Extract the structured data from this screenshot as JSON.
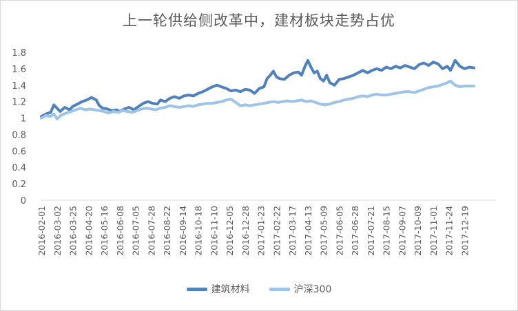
{
  "chart_data": {
    "type": "line",
    "title": "上一轮供给侧改革中，建材板块走势占优",
    "xlabel": "",
    "ylabel": "",
    "ylim": [
      0,
      1.8
    ],
    "yticks": [
      "0",
      "0.2",
      "0.4",
      "0.6",
      "0.8",
      "1",
      "1.2",
      "1.4",
      "1.6",
      "1.8"
    ],
    "grid": false,
    "legend_position": "bottom",
    "x_tick_labels": [
      "2016-02-01",
      "2016-03-02",
      "2016-03-25",
      "2016-04-20",
      "2016-05-16",
      "2016-06-08",
      "2016-07-05",
      "2016-07-28",
      "2016-08-22",
      "2016-09-14",
      "2016-10-18",
      "2016-11-10",
      "2016-12-05",
      "2016-12-28",
      "2017-01-23",
      "2017-02-22",
      "2017-03-17",
      "2017-04-13",
      "2017-05-09",
      "2017-06-05",
      "2017-06-28",
      "2017-07-21",
      "2017-08-15",
      "2017-09-07",
      "2017-10-09",
      "2017-11-01",
      "2017-11-24",
      "2017-12-19"
    ],
    "x_end": 29.0,
    "series": [
      {
        "name": "建筑材料",
        "color": "#4f81bd",
        "points": [
          [
            0,
            1.02
          ],
          [
            0.3,
            1.05
          ],
          [
            0.6,
            1.07
          ],
          [
            0.8,
            1.16
          ],
          [
            1.0,
            1.12
          ],
          [
            1.2,
            1.08
          ],
          [
            1.5,
            1.13
          ],
          [
            1.8,
            1.1
          ],
          [
            2.0,
            1.14
          ],
          [
            2.3,
            1.17
          ],
          [
            2.6,
            1.2
          ],
          [
            2.9,
            1.22
          ],
          [
            3.2,
            1.25
          ],
          [
            3.5,
            1.22
          ],
          [
            3.7,
            1.15
          ],
          [
            3.9,
            1.12
          ],
          [
            4.2,
            1.11
          ],
          [
            4.5,
            1.09
          ],
          [
            4.8,
            1.1
          ],
          [
            5.0,
            1.08
          ],
          [
            5.3,
            1.11
          ],
          [
            5.6,
            1.13
          ],
          [
            5.9,
            1.1
          ],
          [
            6.2,
            1.14
          ],
          [
            6.5,
            1.18
          ],
          [
            6.8,
            1.2
          ],
          [
            7.1,
            1.18
          ],
          [
            7.4,
            1.17
          ],
          [
            7.6,
            1.22
          ],
          [
            7.9,
            1.2
          ],
          [
            8.2,
            1.24
          ],
          [
            8.5,
            1.26
          ],
          [
            8.8,
            1.24
          ],
          [
            9.1,
            1.27
          ],
          [
            9.4,
            1.28
          ],
          [
            9.7,
            1.27
          ],
          [
            10.0,
            1.3
          ],
          [
            10.3,
            1.32
          ],
          [
            10.6,
            1.35
          ],
          [
            10.9,
            1.38
          ],
          [
            11.2,
            1.4
          ],
          [
            11.5,
            1.38
          ],
          [
            11.8,
            1.36
          ],
          [
            12.1,
            1.33
          ],
          [
            12.4,
            1.34
          ],
          [
            12.7,
            1.32
          ],
          [
            13.0,
            1.35
          ],
          [
            13.3,
            1.34
          ],
          [
            13.6,
            1.3
          ],
          [
            13.9,
            1.36
          ],
          [
            14.2,
            1.38
          ],
          [
            14.4,
            1.48
          ],
          [
            14.6,
            1.52
          ],
          [
            14.8,
            1.57
          ],
          [
            15.0,
            1.5
          ],
          [
            15.2,
            1.48
          ],
          [
            15.5,
            1.47
          ],
          [
            15.8,
            1.52
          ],
          [
            16.1,
            1.55
          ],
          [
            16.4,
            1.56
          ],
          [
            16.6,
            1.52
          ],
          [
            16.8,
            1.62
          ],
          [
            17.0,
            1.7
          ],
          [
            17.2,
            1.62
          ],
          [
            17.4,
            1.55
          ],
          [
            17.6,
            1.57
          ],
          [
            17.8,
            1.48
          ],
          [
            18.0,
            1.45
          ],
          [
            18.2,
            1.52
          ],
          [
            18.4,
            1.43
          ],
          [
            18.7,
            1.4
          ],
          [
            19.0,
            1.47
          ],
          [
            19.3,
            1.48
          ],
          [
            19.6,
            1.5
          ],
          [
            19.9,
            1.52
          ],
          [
            20.2,
            1.55
          ],
          [
            20.5,
            1.58
          ],
          [
            20.8,
            1.55
          ],
          [
            21.1,
            1.58
          ],
          [
            21.4,
            1.6
          ],
          [
            21.7,
            1.58
          ],
          [
            22.0,
            1.62
          ],
          [
            22.3,
            1.6
          ],
          [
            22.6,
            1.63
          ],
          [
            22.9,
            1.61
          ],
          [
            23.2,
            1.64
          ],
          [
            23.5,
            1.62
          ],
          [
            23.8,
            1.6
          ],
          [
            24.1,
            1.65
          ],
          [
            24.4,
            1.67
          ],
          [
            24.7,
            1.64
          ],
          [
            25.0,
            1.68
          ],
          [
            25.3,
            1.66
          ],
          [
            25.6,
            1.6
          ],
          [
            25.9,
            1.63
          ],
          [
            26.1,
            1.58
          ],
          [
            26.4,
            1.7
          ],
          [
            26.7,
            1.63
          ],
          [
            27.0,
            1.6
          ],
          [
            27.3,
            1.62
          ],
          [
            27.6,
            1.61
          ]
        ]
      },
      {
        "name": "沪深300",
        "color": "#9dc3e6",
        "points": [
          [
            0,
            1.0
          ],
          [
            0.3,
            1.03
          ],
          [
            0.6,
            1.02
          ],
          [
            0.8,
            1.05
          ],
          [
            1.0,
            0.99
          ],
          [
            1.3,
            1.04
          ],
          [
            1.6,
            1.06
          ],
          [
            1.9,
            1.08
          ],
          [
            2.2,
            1.1
          ],
          [
            2.5,
            1.12
          ],
          [
            2.8,
            1.1
          ],
          [
            3.1,
            1.11
          ],
          [
            3.4,
            1.1
          ],
          [
            3.7,
            1.09
          ],
          [
            4.0,
            1.08
          ],
          [
            4.3,
            1.06
          ],
          [
            4.6,
            1.08
          ],
          [
            4.9,
            1.07
          ],
          [
            5.2,
            1.09
          ],
          [
            5.5,
            1.08
          ],
          [
            5.8,
            1.07
          ],
          [
            6.1,
            1.09
          ],
          [
            6.4,
            1.11
          ],
          [
            6.7,
            1.12
          ],
          [
            7.0,
            1.11
          ],
          [
            7.3,
            1.1
          ],
          [
            7.6,
            1.12
          ],
          [
            7.9,
            1.13
          ],
          [
            8.2,
            1.15
          ],
          [
            8.5,
            1.14
          ],
          [
            8.8,
            1.13
          ],
          [
            9.1,
            1.14
          ],
          [
            9.4,
            1.15
          ],
          [
            9.7,
            1.14
          ],
          [
            10.0,
            1.16
          ],
          [
            10.3,
            1.17
          ],
          [
            10.6,
            1.18
          ],
          [
            10.9,
            1.18
          ],
          [
            11.2,
            1.19
          ],
          [
            11.5,
            1.2
          ],
          [
            11.8,
            1.22
          ],
          [
            12.1,
            1.23
          ],
          [
            12.4,
            1.19
          ],
          [
            12.7,
            1.15
          ],
          [
            13.0,
            1.16
          ],
          [
            13.3,
            1.15
          ],
          [
            13.6,
            1.16
          ],
          [
            13.9,
            1.17
          ],
          [
            14.2,
            1.18
          ],
          [
            14.5,
            1.19
          ],
          [
            14.8,
            1.2
          ],
          [
            15.1,
            1.19
          ],
          [
            15.4,
            1.2
          ],
          [
            15.7,
            1.21
          ],
          [
            16.0,
            1.2
          ],
          [
            16.3,
            1.21
          ],
          [
            16.6,
            1.22
          ],
          [
            16.9,
            1.2
          ],
          [
            17.2,
            1.21
          ],
          [
            17.5,
            1.19
          ],
          [
            17.8,
            1.17
          ],
          [
            18.1,
            1.16
          ],
          [
            18.4,
            1.17
          ],
          [
            18.7,
            1.19
          ],
          [
            19.0,
            1.2
          ],
          [
            19.3,
            1.22
          ],
          [
            19.6,
            1.23
          ],
          [
            19.9,
            1.24
          ],
          [
            20.2,
            1.26
          ],
          [
            20.5,
            1.27
          ],
          [
            20.8,
            1.26
          ],
          [
            21.1,
            1.28
          ],
          [
            21.4,
            1.29
          ],
          [
            21.7,
            1.28
          ],
          [
            22.0,
            1.28
          ],
          [
            22.3,
            1.29
          ],
          [
            22.6,
            1.3
          ],
          [
            22.9,
            1.31
          ],
          [
            23.2,
            1.32
          ],
          [
            23.5,
            1.32
          ],
          [
            23.8,
            1.31
          ],
          [
            24.1,
            1.33
          ],
          [
            24.4,
            1.35
          ],
          [
            24.7,
            1.37
          ],
          [
            25.0,
            1.38
          ],
          [
            25.3,
            1.39
          ],
          [
            25.6,
            1.41
          ],
          [
            25.9,
            1.43
          ],
          [
            26.1,
            1.45
          ],
          [
            26.4,
            1.4
          ],
          [
            26.7,
            1.38
          ],
          [
            27.0,
            1.39
          ],
          [
            27.3,
            1.39
          ],
          [
            27.6,
            1.39
          ]
        ]
      }
    ]
  }
}
